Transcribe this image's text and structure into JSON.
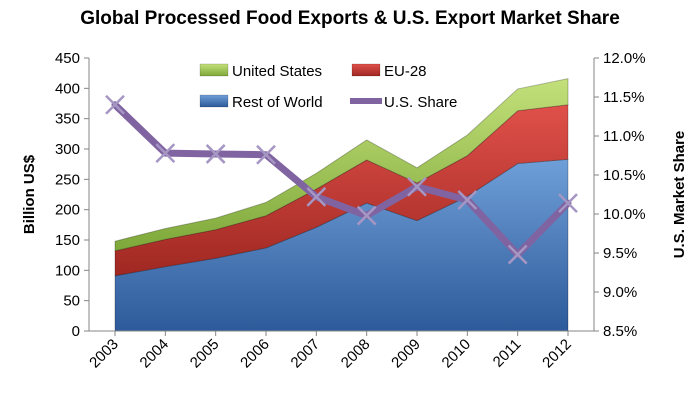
{
  "chart_data": {
    "type": "area",
    "title": "Global Processed Food Exports & U.S. Export Market Share",
    "x": [
      "2003",
      "2004",
      "2005",
      "2006",
      "2007",
      "2008",
      "2009",
      "2010",
      "2011",
      "2012"
    ],
    "stacked": true,
    "series": [
      {
        "name": "Rest of World",
        "axis": "left",
        "type": "area",
        "color": "#4f81bd",
        "values": [
          91,
          106,
          120,
          137,
          171,
          211,
          182,
          222,
          276,
          283
        ]
      },
      {
        "name": "EU-28",
        "axis": "left",
        "type": "area",
        "color": "#c0504d",
        "values": [
          41,
          45,
          47,
          53,
          63,
          71,
          62,
          67,
          87,
          90
        ]
      },
      {
        "name": "United States",
        "axis": "left",
        "type": "area",
        "color": "#9bbb59",
        "values": [
          16,
          18,
          19,
          22,
          26,
          33,
          25,
          34,
          36,
          43
        ]
      },
      {
        "name": "U.S. Share",
        "axis": "right",
        "type": "line",
        "color": "#8064a2",
        "values": [
          11.4,
          10.78,
          10.77,
          10.76,
          10.22,
          9.98,
          10.35,
          10.18,
          9.48,
          10.14
        ]
      }
    ],
    "ylabel": "Billion US$",
    "ylim": [
      0,
      450
    ],
    "yticks": [
      "0",
      "50",
      "100",
      "150",
      "200",
      "250",
      "300",
      "350",
      "400",
      "450"
    ],
    "y2label": "U.S. Market Share",
    "y2lim": [
      8.5,
      12.0
    ],
    "y2ticks": [
      "8.5%",
      "9.0%",
      "9.5%",
      "10.0%",
      "10.5%",
      "11.0%",
      "11.5%",
      "12.0%"
    ],
    "grid": false,
    "legend": "top-center"
  }
}
